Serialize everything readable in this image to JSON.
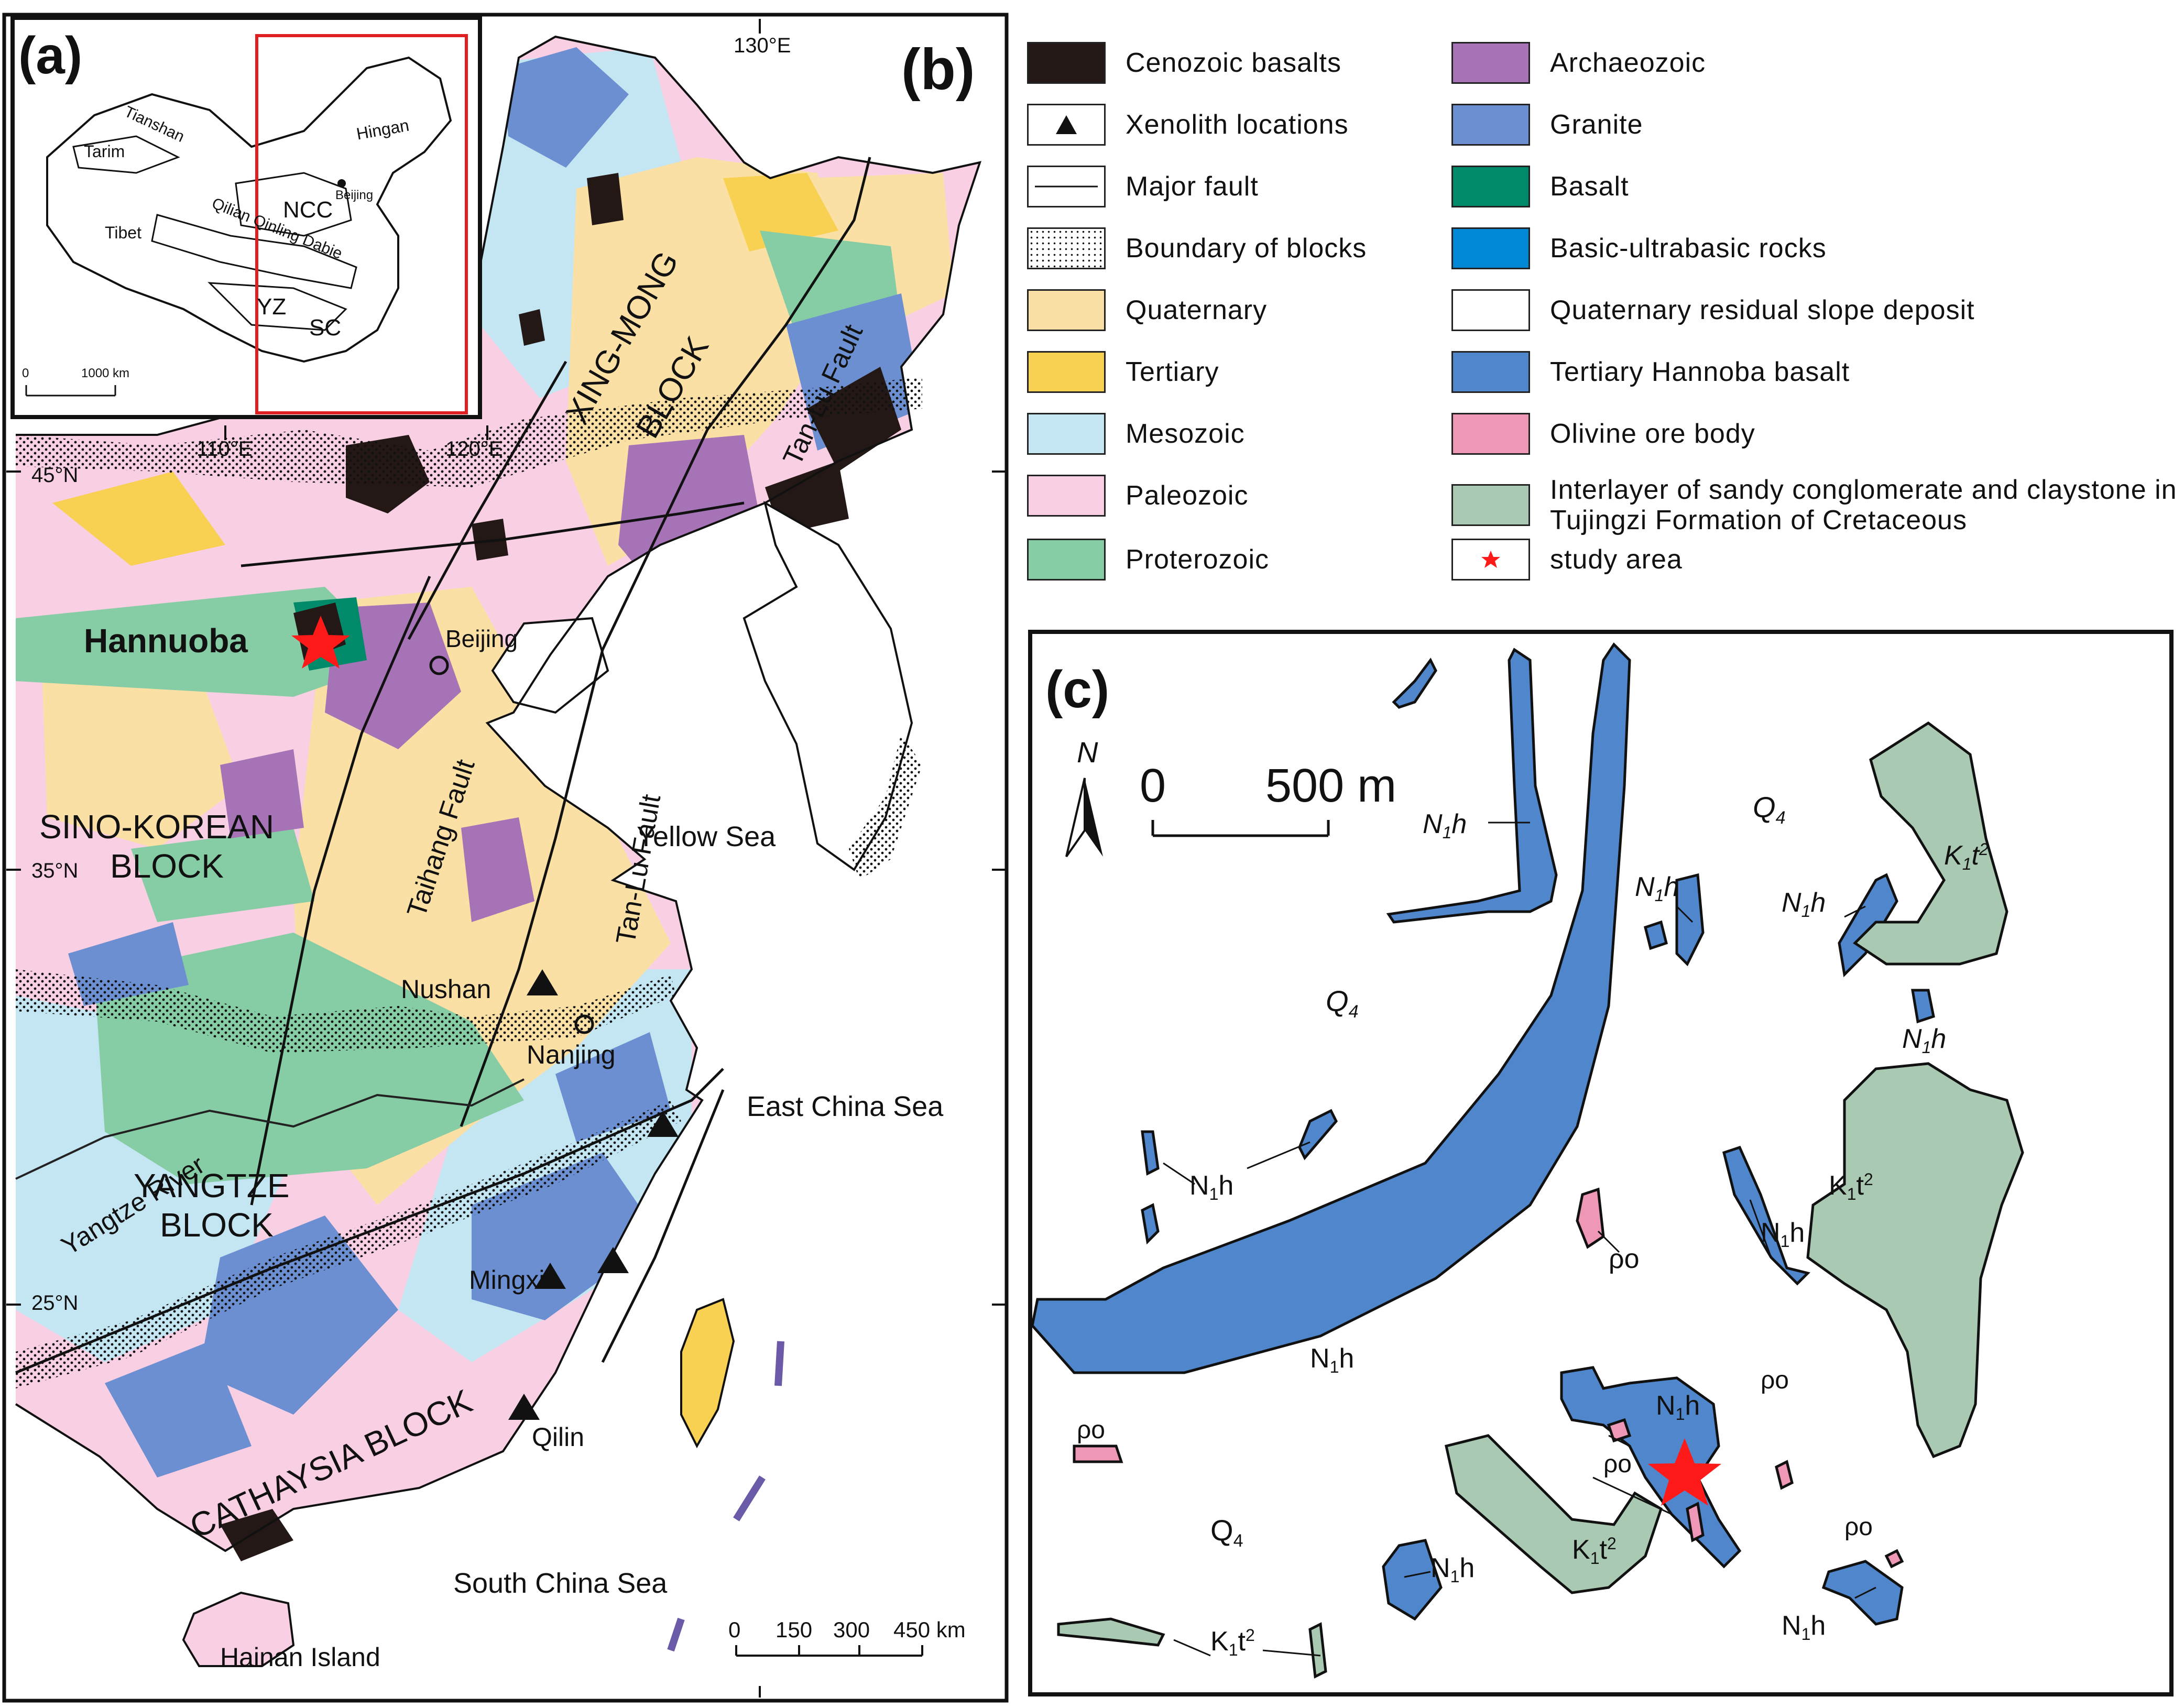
{
  "panels": {
    "a": "(a)",
    "b": "(b)",
    "c": "(c)"
  },
  "inset_a": {
    "labels": [
      "Tianshan",
      "Hingan",
      "Tarim",
      "Beijing",
      "NCC",
      "Tibet",
      "Qilian Qinling Dabie",
      "YZ",
      "SC"
    ],
    "scale": {
      "zero": "0",
      "end": "1000 km"
    }
  },
  "map_b": {
    "meridians": [
      "110°E",
      "120°E",
      "130°E"
    ],
    "parallels": [
      "45°N",
      "35°N",
      "25°N"
    ],
    "blocks": [
      "XING-MONG",
      "BLOCK",
      "SINO-KOREAN",
      "BLOCK",
      "YANGTZE",
      "BLOCK",
      "CATHAYSIA BLOCK"
    ],
    "faults": [
      "Tan-Lu Fault",
      "Tan-Lu Fault",
      "Taihang Fault"
    ],
    "places": [
      "Hannuoba",
      "Beijing",
      "Nushan",
      "Nanjing",
      "Mingxi",
      "Qilin",
      "Hainan Island"
    ],
    "seas": [
      "Yellow Sea",
      "East China Sea",
      "South China Sea",
      "Yangtze River"
    ],
    "scale": [
      "0",
      "150",
      "300",
      "450 km"
    ]
  },
  "legend": [
    {
      "label": "Cenozoic basalts",
      "color": "#231815",
      "kind": "fill"
    },
    {
      "label": "Xenolith locations",
      "color": "#ffffff",
      "kind": "triangle"
    },
    {
      "label": "Major fault",
      "color": "#ffffff",
      "kind": "line"
    },
    {
      "label": "Boundary of blocks",
      "color": "#ffffff",
      "kind": "dots"
    },
    {
      "label": "Quaternary",
      "color": "#fbe0a6",
      "kind": "fill"
    },
    {
      "label": "Tertiary",
      "color": "#f8d153",
      "kind": "fill"
    },
    {
      "label": "Mesozoic",
      "color": "#c4e5f2",
      "kind": "fill"
    },
    {
      "label": "Paleozoic",
      "color": "#f9cfe3",
      "kind": "fill"
    },
    {
      "label": "Proterozoic",
      "color": "#86cca4",
      "kind": "fill"
    },
    {
      "label": "Archaeozoic",
      "color": "#a673b6",
      "kind": "fill"
    },
    {
      "label": "Granite",
      "color": "#6b8fd0",
      "kind": "fill"
    },
    {
      "label": "Basalt",
      "color": "#008a6a",
      "kind": "fill"
    },
    {
      "label": "Basic-ultrabasic rocks",
      "color": "#0088d6",
      "kind": "fill"
    },
    {
      "label": "Quaternary residual slope deposit",
      "color": "#ffffff",
      "kind": "fill"
    },
    {
      "label": "Tertiary Hannoba basalt",
      "color": "#4f86cc",
      "kind": "fill"
    },
    {
      "label": "Olivine ore body",
      "color": "#ef97b7",
      "kind": "fill"
    },
    {
      "label": "Interlayer of sandy conglomerate and claystone in Tujingzi Formation of Cretaceous",
      "color": "#a9c9b2",
      "kind": "fill"
    },
    {
      "label": "study area",
      "color": "#ffffff",
      "kind": "star"
    }
  ],
  "map_c": {
    "north": "N",
    "scale_zero": "0",
    "scale_end": "500 m",
    "units": {
      "q4": "Q",
      "q4_sub": "4",
      "n1h": "N",
      "n1h_sub": "1",
      "n1h_tail": "h",
      "k1t": "K",
      "k1t_sub": "1",
      "k1t_tail": "t",
      "k1t_sup": "2",
      "po": "ρo"
    }
  },
  "colors": {
    "quaternary": "#fbe0a6",
    "tertiary": "#f8d153",
    "mesozoic": "#c4e5f2",
    "paleozoic": "#f9cfe3",
    "proterozoic": "#86cca4",
    "archaeozoic": "#a673b6",
    "granite": "#6b8fd0",
    "basalt": "#008a6a",
    "cenozoic": "#231815",
    "hannoba": "#4f86cc",
    "olivine": "#ef97b7",
    "tujingzi": "#a9c9b2",
    "star": "#ff1a1a"
  }
}
